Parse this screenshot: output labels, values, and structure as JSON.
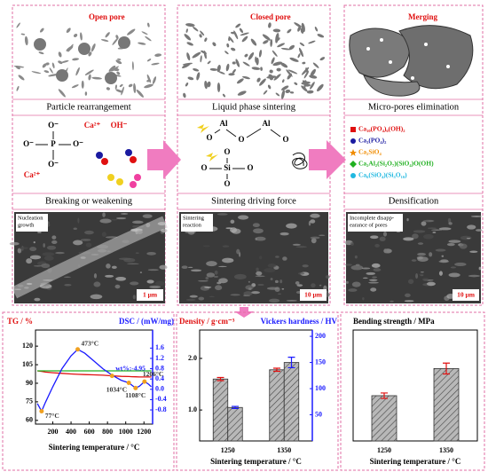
{
  "panels": [
    {
      "pore_label": "Open pore",
      "stage": "Particle rearrangement",
      "structure": [
        "O⁻",
        "O⁻",
        "P",
        "O⁻",
        "O⁻",
        "Ca²⁺",
        "OH⁻",
        "Ca²⁺"
      ],
      "mechanism": "Breaking or weakening",
      "image_label": [
        "Nucleation",
        "growth"
      ],
      "scale": "1 μm"
    },
    {
      "pore_label": "Closed pore",
      "stage": "Liquid phase sintering",
      "structure": [
        "Al",
        "O",
        "O",
        "Al",
        "O",
        "Si",
        "O",
        "O",
        "O",
        "O"
      ],
      "mechanism": "Sintering driving force",
      "image_label": [
        "Sintering",
        "reaction"
      ],
      "scale": "10 μm"
    },
    {
      "pore_label": "Merging",
      "stage": "Micro-pores elimination",
      "phases": [
        {
          "name": "Ca₁₀(PO₄)₆(OH)₂",
          "color": "#e01010"
        },
        {
          "name": "Ca₃(PO₄)₂",
          "color": "#1a1aa0"
        },
        {
          "name": "Ca₂SiO₄",
          "color": "#f08c00"
        },
        {
          "name": "Ca₂Al₂(Si₂O₇)(SiO₄)O(OH)",
          "color": "#20b020"
        },
        {
          "name": "Ca₆(SiO₄)(Si₃O₁₀)",
          "color": "#20b8e0"
        }
      ],
      "mechanism": "Densification",
      "image_label": [
        "Incomplete disapp-",
        "earance of pores"
      ],
      "scale": "10 μm"
    }
  ],
  "chart_data": [
    {
      "type": "line",
      "ylabel": "TG / %",
      "y2label": "DSC / (mW/mg)",
      "xlabel": "Sintering temperature / °C",
      "x": [
        30,
        77,
        120,
        200,
        300,
        400,
        473,
        550,
        650,
        750,
        850,
        950,
        1034,
        1070,
        1108,
        1150,
        1206,
        1250,
        1280
      ],
      "xlim": [
        10,
        1295
      ],
      "xticks": [
        200,
        400,
        600,
        800,
        1000,
        1200
      ],
      "ylim": [
        57,
        133
      ],
      "yticks": [
        60,
        75,
        90,
        105,
        120
      ],
      "y2lim": [
        -1.35,
        2.3
      ],
      "y2ticks": [
        -0.8,
        -0.4,
        {
          "value": 0,
          "label": "0.0"
        },
        0.4,
        0.8,
        1.2,
        1.6
      ],
      "series": [
        {
          "color": "#e01010",
          "values": [
            100,
            99.6,
            99,
            98.5,
            98,
            97.5,
            97.2,
            97,
            96.8,
            96.5,
            96,
            95.6,
            95.4,
            95.3,
            95.2,
            95.1,
            95.05,
            95.05,
            95.05
          ]
        },
        {
          "color": "#20b020",
          "values": [
            100,
            100,
            100,
            100,
            100,
            100,
            100,
            100,
            100,
            100,
            100,
            100,
            100,
            100,
            100,
            100,
            100,
            100,
            100
          ]
        },
        {
          "color": "#1a1aff",
          "axis": "y2",
          "values": [
            -0.55,
            -0.85,
            -0.5,
            0.1,
            0.8,
            1.3,
            1.55,
            1.4,
            1.1,
            0.8,
            0.55,
            0.35,
            0.25,
            0.15,
            0.05,
            0.12,
            0.3,
            0.2,
            0.1
          ]
        }
      ],
      "annotations": [
        {
          "text": "77°C",
          "x": 77,
          "y": -0.85,
          "axis": "y2"
        },
        {
          "text": "473°C",
          "x": 473,
          "y": 1.55,
          "axis": "y2"
        },
        {
          "text": "wt%:-4.95",
          "x": 850,
          "y": 96,
          "axis": "y"
        },
        {
          "text": "1206°C",
          "x": 1206,
          "y": 0.3,
          "axis": "y2"
        },
        {
          "text": "1034°C",
          "x": 1034,
          "y": 0.25,
          "axis": "y2"
        },
        {
          "text": "1108°C",
          "x": 1108,
          "y": 0.05,
          "axis": "y2"
        }
      ]
    },
    {
      "type": "bar",
      "ylabel": "Density / g·cm⁻³",
      "y2label": "Vickers hardness / HV",
      "xlabel": "Sintering temperature / °C",
      "categories": [
        "1250",
        "1350"
      ],
      "ylim": [
        0.4,
        2.55
      ],
      "yticks": [
        {
          "value": 1,
          "label": "1.0"
        },
        {
          "value": 2,
          "label": "2.0"
        }
      ],
      "y2lim": [
        0,
        212
      ],
      "y2ticks": [
        50,
        100,
        150,
        200
      ],
      "series": [
        {
          "color": "#e01010",
          "values": [
            1.6,
            1.78
          ],
          "errors": [
            0.03,
            0.03
          ]
        },
        {
          "color": "#1a1aff",
          "axis": "y2",
          "values": [
            64,
            150
          ],
          "errors": [
            2,
            10
          ]
        }
      ]
    },
    {
      "type": "bar",
      "ylabel": "Bending strength / MPa",
      "xlabel": "Sintering temperature / °C",
      "categories": [
        "1250",
        "1350"
      ],
      "ylim": [
        0,
        24.5
      ],
      "series": [
        {
          "color": "#e01010",
          "values": [
            10,
            16
          ],
          "errors": [
            0.6,
            1.2
          ]
        }
      ]
    }
  ]
}
